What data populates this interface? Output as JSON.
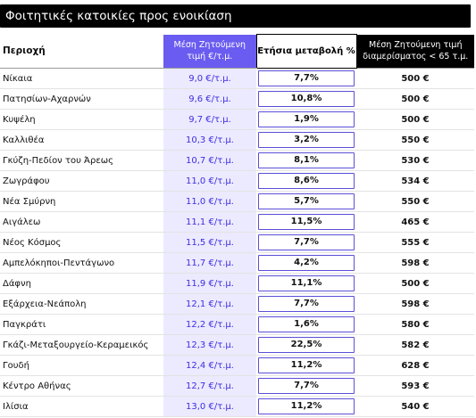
{
  "title": "Φοιτητικές κατοικίες προς ενοικίαση",
  "headers": {
    "area": "Περιοχή",
    "price_line1": "Μέση Ζητούμενη",
    "price_line2": "τιμή €/τ.μ.",
    "change": "Ετήσια μεταβολή %",
    "rent_line1": "Μέση Ζητούμενη τιμή",
    "rent_line2": "διαμερίσματος < 65 τ.μ."
  },
  "rows": [
    {
      "area": "Νίκαια",
      "price": "9,0 €/τ.μ.",
      "change": "7,7%",
      "rent": "500 €"
    },
    {
      "area": "Πατησίων-Αχαρνών",
      "price": "9,6 €/τ.μ.",
      "change": "10,8%",
      "rent": "500 €"
    },
    {
      "area": "Κυψέλη",
      "price": "9,7 €/τ.μ.",
      "change": "1,9%",
      "rent": "500 €"
    },
    {
      "area": "Καλλιθέα",
      "price": "10,3 €/τ.μ.",
      "change": "3,2%",
      "rent": "550 €"
    },
    {
      "area": "Γκύζη-Πεδίον του Άρεως",
      "price": "10,7 €/τ.μ.",
      "change": "8,1%",
      "rent": "530 €"
    },
    {
      "area": "Ζωγράφου",
      "price": "11,0 €/τ.μ.",
      "change": "8,6%",
      "rent": "534 €"
    },
    {
      "area": "Νέα Σμύρνη",
      "price": "11,0 €/τ.μ.",
      "change": "5,7%",
      "rent": "550 €"
    },
    {
      "area": "Αιγάλεω",
      "price": "11,1 €/τ.μ.",
      "change": "11,5%",
      "rent": "465 €"
    },
    {
      "area": "Νέος Κόσμος",
      "price": "11,5 €/τ.μ.",
      "change": "7,7%",
      "rent": "555 €"
    },
    {
      "area": "Αμπελόκηποι-Πεντάγωνο",
      "price": "11,7 €/τ.μ.",
      "change": "4,2%",
      "rent": "598 €"
    },
    {
      "area": "Δάφνη",
      "price": "11,9 €/τ.μ.",
      "change": "11,1%",
      "rent": "500 €"
    },
    {
      "area": "Εξάρχεια-Νεάπολη",
      "price": "12,1 €/τ.μ.",
      "change": "7,7%",
      "rent": "598 €"
    },
    {
      "area": "Παγκράτι",
      "price": "12,2 €/τ.μ.",
      "change": "1,6%",
      "rent": "580 €"
    },
    {
      "area": "Γκάζι-Μεταξουργείο-Κεραμεικός",
      "price": "12,3 €/τ.μ.",
      "change": "22,5%",
      "rent": "582 €"
    },
    {
      "area": "Γουδή",
      "price": "12,4 €/τ.μ.",
      "change": "11,2%",
      "rent": "628 €"
    },
    {
      "area": "Κέντρο Αθήνας",
      "price": "12,7 €/τ.μ.",
      "change": "7,7%",
      "rent": "593 €"
    },
    {
      "area": "Ιλίσια",
      "price": "13,0 €/τ.μ.",
      "change": "11,2%",
      "rent": "540 €"
    }
  ]
}
